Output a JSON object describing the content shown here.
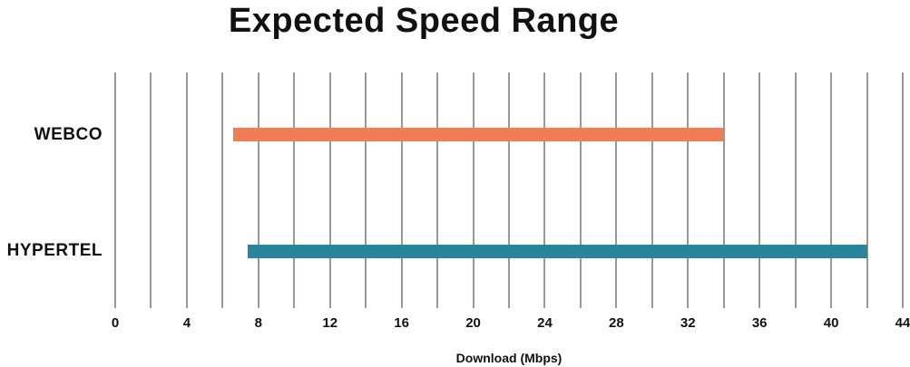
{
  "chart_data": {
    "type": "bar",
    "subtype": "horizontal-range",
    "title": "Expected Speed Range",
    "xlabel": "Download (Mbps)",
    "categories": [
      "WEBCO",
      "HYPERTEL"
    ],
    "bars": [
      {
        "label": "WEBCO",
        "start": 6.6,
        "end": 34,
        "color": "#f07d55"
      },
      {
        "label": "HYPERTEL",
        "start": 7.4,
        "end": 42,
        "color": "#27859c"
      }
    ],
    "xlim": [
      0,
      44
    ],
    "x_major_ticks": [
      0,
      4,
      8,
      12,
      16,
      20,
      24,
      28,
      32,
      36,
      40,
      44
    ],
    "x_minor_step": 2,
    "grid": "vertical minor gridlines every 2 Mbps, no axis spines",
    "legend": "none",
    "colors": {
      "grid": "#9c9892",
      "text": "#111111",
      "background": "#ffffff"
    }
  }
}
